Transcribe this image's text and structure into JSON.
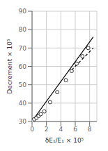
{
  "chart_data": {
    "type": "line",
    "xlabel": "δE₁/E₁ × 10⁵",
    "ylabel": "Decrement × 10⁵",
    "xlim": [
      0,
      9
    ],
    "ylim": [
      30,
      90
    ],
    "xticks": [
      0,
      2,
      4,
      6,
      8
    ],
    "yticks": [
      30,
      40,
      50,
      60,
      70,
      80,
      90
    ],
    "grid": true,
    "series": [
      {
        "type": "line",
        "line_style": "solid",
        "color": "#000000",
        "x": [
          0.0,
          8.5
        ],
        "values": [
          30.2,
          76.0
        ]
      },
      {
        "type": "line",
        "line_style": "dashed",
        "color": "#000000",
        "x": [
          5.5,
          8.5
        ],
        "values": [
          58.0,
          70.0
        ]
      },
      {
        "type": "scatter",
        "marker": "circle",
        "color": "#000000",
        "x": [
          0.05,
          0.3,
          0.6,
          0.9,
          1.2,
          1.7,
          2.5,
          3.5,
          4.7,
          5.5,
          6.2,
          7.0,
          7.8
        ],
        "values": [
          30.5,
          31.2,
          32.0,
          33.0,
          34.0,
          35.5,
          40.5,
          46.0,
          52.5,
          57.5,
          61.5,
          65.5,
          70.0
        ]
      }
    ]
  }
}
